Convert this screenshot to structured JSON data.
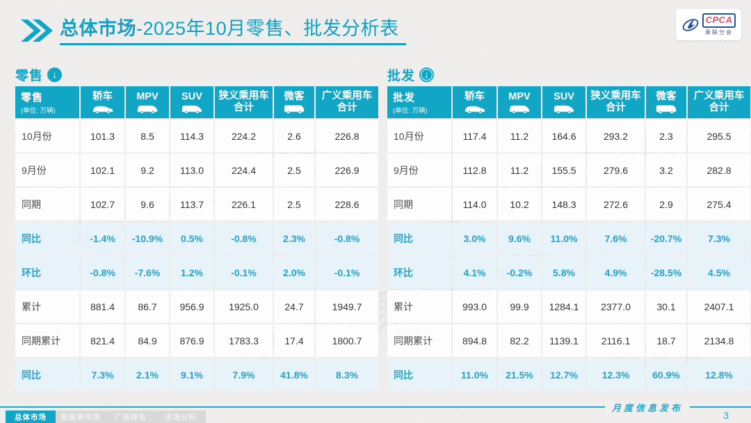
{
  "header": {
    "title_bold": "总体市场",
    "title_rest": "-2025年10月零售、批发分析表",
    "logo": {
      "text": "CPCA",
      "subtext": "乘联分会"
    }
  },
  "watermark": {
    "text": "CPCA 乘联分会"
  },
  "tables": [
    {
      "name": "零售",
      "unit": "(单位: 万辆)",
      "arrow_icon": "circle-down-arrow-icon",
      "columns": [
        {
          "label": "轿车",
          "icon": "car-icon"
        },
        {
          "label": "MPV",
          "icon": "mpv-icon"
        },
        {
          "label": "SUV",
          "icon": "suv-icon"
        },
        {
          "label": "狭义乘用车\n合计",
          "icon": null
        },
        {
          "label": "微客",
          "icon": "van-icon"
        },
        {
          "label": "广义乘用车\n合计",
          "icon": null
        }
      ],
      "rows": [
        {
          "label": "10月份",
          "kind": "data",
          "values": [
            "101.3",
            "8.5",
            "114.3",
            "224.2",
            "2.6",
            "226.8"
          ]
        },
        {
          "label": "9月份",
          "kind": "data",
          "values": [
            "102.1",
            "9.2",
            "113.0",
            "224.4",
            "2.5",
            "226.9"
          ]
        },
        {
          "label": "同期",
          "kind": "data",
          "values": [
            "102.7",
            "9.6",
            "113.7",
            "226.1",
            "2.5",
            "228.6"
          ]
        },
        {
          "label": "同比",
          "kind": "pct",
          "values": [
            "-1.4%",
            "-10.9%",
            "0.5%",
            "-0.8%",
            "2.3%",
            "-0.8%"
          ]
        },
        {
          "label": "环比",
          "kind": "pct",
          "values": [
            "-0.8%",
            "-7.6%",
            "1.2%",
            "-0.1%",
            "2.0%",
            "-0.1%"
          ]
        },
        {
          "label": "累计",
          "kind": "data",
          "values": [
            "881.4",
            "86.7",
            "956.9",
            "1925.0",
            "24.7",
            "1949.7"
          ]
        },
        {
          "label": "同期累计",
          "kind": "data",
          "values": [
            "821.4",
            "84.9",
            "876.9",
            "1783.3",
            "17.4",
            "1800.7"
          ]
        },
        {
          "label": "同比",
          "kind": "pct",
          "values": [
            "7.3%",
            "2.1%",
            "9.1%",
            "7.9%",
            "41.8%",
            "8.3%"
          ]
        }
      ]
    },
    {
      "name": "批发",
      "unit": "(单位: 万辆)",
      "arrow_icon": "circle-down-arrow-ring-icon",
      "columns": [
        {
          "label": "轿车",
          "icon": "car-icon"
        },
        {
          "label": "MPV",
          "icon": "mpv-icon"
        },
        {
          "label": "SUV",
          "icon": "suv-icon"
        },
        {
          "label": "狭义乘用车\n合计",
          "icon": null
        },
        {
          "label": "微客",
          "icon": "van-icon"
        },
        {
          "label": "广义乘用车\n合计",
          "icon": null
        }
      ],
      "rows": [
        {
          "label": "10月份",
          "kind": "data",
          "values": [
            "117.4",
            "11.2",
            "164.6",
            "293.2",
            "2.3",
            "295.5"
          ]
        },
        {
          "label": "9月份",
          "kind": "data",
          "values": [
            "112.8",
            "11.2",
            "155.5",
            "279.6",
            "3.2",
            "282.8"
          ]
        },
        {
          "label": "同期",
          "kind": "data",
          "values": [
            "114.0",
            "10.2",
            "148.3",
            "272.6",
            "2.9",
            "275.4"
          ]
        },
        {
          "label": "同比",
          "kind": "pct",
          "values": [
            "3.0%",
            "9.6%",
            "11.0%",
            "7.6%",
            "-20.7%",
            "7.3%"
          ]
        },
        {
          "label": "环比",
          "kind": "pct",
          "values": [
            "4.1%",
            "-0.2%",
            "5.8%",
            "4.9%",
            "-28.5%",
            "4.5%"
          ]
        },
        {
          "label": "累计",
          "kind": "data",
          "values": [
            "993.0",
            "99.9",
            "1284.1",
            "2377.0",
            "30.1",
            "2407.1"
          ]
        },
        {
          "label": "同期累计",
          "kind": "data",
          "values": [
            "894.8",
            "82.2",
            "1139.1",
            "2116.1",
            "18.7",
            "2134.8"
          ]
        },
        {
          "label": "同比",
          "kind": "pct",
          "values": [
            "11.0%",
            "21.5%",
            "12.7%",
            "12.3%",
            "60.9%",
            "12.8%"
          ]
        }
      ]
    }
  ],
  "footer": {
    "tabs": [
      {
        "label": "总体市场",
        "active": true
      },
      {
        "label": "新能源市场",
        "active": false
      },
      {
        "label": "厂商排名",
        "active": false
      },
      {
        "label": "市场分析",
        "active": false
      }
    ],
    "release_label": "月度信息发布",
    "page_number": "3"
  },
  "colors": {
    "accent_teal": "#11a6c5",
    "title_teal": "#11a0c4",
    "pct_row_bg": "#e7f3f9",
    "pct_text": "#23a2cc",
    "logo_blue": "#2450a0",
    "logo_red": "#d9536a"
  }
}
